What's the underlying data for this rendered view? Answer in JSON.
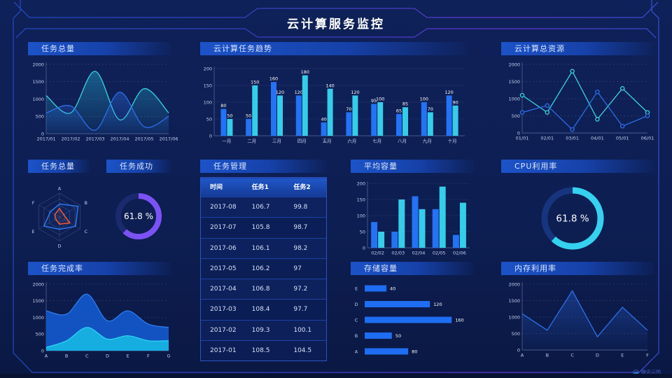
{
  "header": {
    "title": "云计算服务监控"
  },
  "watermark": {
    "label": "腾讯云图"
  },
  "colors": {
    "background": "#0d1e52",
    "panel_header_blue": "#1c53c8",
    "frame_line_blue": "#2952d8",
    "frame_line_purple": "#7c3bf0",
    "series_blue": "#2472f5",
    "series_cyan": "#35cde8",
    "donut_purple": "#7b52f5",
    "donut_cyan": "#35d2ef",
    "radar_orange": "#ff5a2d"
  },
  "panels": {
    "tasks_total_line": {
      "title": "任务总量"
    },
    "task_trend": {
      "title": "云计算任务趋势"
    },
    "cloud_resources": {
      "title": "云计算总资源"
    },
    "tasks_radar": {
      "title": "任务总量"
    },
    "task_success": {
      "title": "任务成功"
    },
    "task_table": {
      "title": "任务管理"
    },
    "avg_capacity": {
      "title": "平均容量"
    },
    "cpu": {
      "title": "CPU利用率"
    },
    "completion": {
      "title": "任务完成率"
    },
    "storage": {
      "title": "存储容量"
    },
    "memory": {
      "title": "内存利用率"
    }
  },
  "table": {
    "headers": [
      "时间",
      "任务1",
      "任务2"
    ],
    "rows": [
      [
        "2017-08",
        "106.7",
        "99.8"
      ],
      [
        "2017-07",
        "105.8",
        "98.7"
      ],
      [
        "2017-06",
        "106.1",
        "98.2"
      ],
      [
        "2017-05",
        "106.2",
        "97"
      ],
      [
        "2017-04",
        "106.8",
        "97.2"
      ],
      [
        "2017-03",
        "108.4",
        "97.7"
      ],
      [
        "2017-02",
        "109.3",
        "100.1"
      ],
      [
        "2017-01",
        "108.5",
        "104.5"
      ]
    ]
  },
  "chart_data": [
    {
      "id": "tasks_total_line",
      "type": "line",
      "smooth": true,
      "grid": "dash",
      "title": "任务总量",
      "x": [
        "2017/01",
        "2017/02",
        "2017/03",
        "2017/04",
        "2017/05",
        "2017/06"
      ],
      "ylim": [
        0,
        2000
      ],
      "yticks": [
        0,
        500,
        1000,
        1500,
        2000
      ],
      "series": [
        {
          "name": "cyan-series",
          "color": "#3bd4de",
          "fill": "#29b8d8",
          "values": [
            1100,
            600,
            1800,
            400,
            1300,
            600
          ]
        },
        {
          "name": "blue-series",
          "color": "#2e6ee8",
          "fill": "#2e6ee8",
          "values": [
            600,
            800,
            100,
            1200,
            200,
            500
          ]
        }
      ]
    },
    {
      "id": "task_trend",
      "type": "bar",
      "grid": "solid",
      "labels": true,
      "title": "云计算任务趋势",
      "x": [
        "一月",
        "二月",
        "三月",
        "四月",
        "五月",
        "六月",
        "七月",
        "八月",
        "九月",
        "十月"
      ],
      "ylim": [
        0,
        200
      ],
      "yticks": [
        0,
        50,
        100,
        150,
        200
      ],
      "series": [
        {
          "name": "任务1",
          "color": "#2472f5",
          "values": [
            80,
            50,
            160,
            120,
            40,
            70,
            95,
            65,
            100,
            120
          ]
        },
        {
          "name": "任务2",
          "color": "#35cde8",
          "values": [
            50,
            150,
            120,
            180,
            140,
            120,
            100,
            85,
            70,
            90
          ]
        }
      ]
    },
    {
      "id": "cloud_resources",
      "type": "line",
      "smooth": false,
      "markers": true,
      "grid": "dash",
      "title": "云计算总资源",
      "x": [
        "01/01",
        "02/01",
        "03/01",
        "04/01",
        "05/01",
        "06/01"
      ],
      "ylim": [
        0,
        2000
      ],
      "yticks": [
        0,
        500,
        1000,
        1500,
        2000
      ],
      "series": [
        {
          "name": "cyan-series",
          "color": "#3bd4de",
          "values": [
            1100,
            600,
            1800,
            400,
            1300,
            600
          ]
        },
        {
          "name": "blue-series",
          "color": "#2e6ee8",
          "values": [
            600,
            800,
            100,
            1200,
            200,
            500
          ]
        }
      ]
    },
    {
      "id": "tasks_radar",
      "type": "radar",
      "title": "任务总量",
      "axes": [
        "A",
        "B",
        "C",
        "D",
        "E",
        "F"
      ],
      "max": 100,
      "series": [
        {
          "name": "blue-series",
          "color": "#2f7df5",
          "values": [
            55,
            90,
            78,
            52,
            76,
            44
          ]
        },
        {
          "name": "orange-series",
          "color": "#ff5a2d",
          "values": [
            36,
            20,
            50,
            30,
            18,
            22
          ]
        }
      ]
    },
    {
      "id": "task_success",
      "type": "donut",
      "title": "任务成功",
      "value": 61.8,
      "label": "61.8 %",
      "color": "#7b52f5",
      "track": "#1b2a6e"
    },
    {
      "id": "avg_capacity",
      "type": "bar",
      "grid": "solid",
      "labels": false,
      "title": "平均容量",
      "x": [
        "02/02",
        "02/03",
        "02/04",
        "02/05",
        "02/06"
      ],
      "ylim": [
        0,
        200
      ],
      "yticks": [
        0,
        50,
        100,
        150,
        200
      ],
      "series": [
        {
          "name": "blue-series",
          "color": "#2472f5",
          "values": [
            80,
            50,
            160,
            120,
            40
          ]
        },
        {
          "name": "cyan-series",
          "color": "#35cde8",
          "values": [
            50,
            150,
            120,
            190,
            140
          ]
        }
      ]
    },
    {
      "id": "cpu",
      "type": "donut",
      "title": "CPU利用率",
      "value": 61.8,
      "label": "61.8 %",
      "color": "#35d2ef",
      "track": "#17357e"
    },
    {
      "id": "completion",
      "type": "line",
      "smooth": true,
      "grid": "dash",
      "title": "任务完成率",
      "x": [
        "A",
        "B",
        "C",
        "D",
        "E",
        "F",
        "G"
      ],
      "ylim": [
        0,
        2000
      ],
      "yticks": [
        0,
        500,
        1000,
        1500,
        2000
      ],
      "series": [
        {
          "name": "blue-area",
          "color": "#2e7cf0",
          "fill": "#1356c8",
          "solid": true,
          "values": [
            1200,
            1100,
            1700,
            900,
            1200,
            800,
            700
          ]
        },
        {
          "name": "cyan-area",
          "color": "#2fd2f0",
          "fill": "#17b2e2",
          "solid": true,
          "values": [
            100,
            300,
            700,
            350,
            450,
            300,
            300
          ]
        }
      ]
    },
    {
      "id": "storage",
      "type": "hbar",
      "title": "存储容量",
      "color": "#1f6df2",
      "xmax": 170,
      "rows": [
        {
          "label": "E",
          "value": 40
        },
        {
          "label": "D",
          "value": 120
        },
        {
          "label": "C",
          "value": 160
        },
        {
          "label": "B",
          "value": 50
        },
        {
          "label": "A",
          "value": 80
        }
      ]
    },
    {
      "id": "memory",
      "type": "line",
      "smooth": false,
      "grid": "dash",
      "title": "内存利用率",
      "x": [
        "A",
        "B",
        "C",
        "D",
        "E",
        "F"
      ],
      "ylim": [
        0,
        2000
      ],
      "yticks": [
        0,
        500,
        1000,
        1500,
        2000
      ],
      "series": [
        {
          "name": "blue-series",
          "color": "#2f6ee8",
          "fill": "#2a63d8",
          "values": [
            1100,
            600,
            1800,
            400,
            1300,
            600
          ]
        }
      ]
    }
  ]
}
